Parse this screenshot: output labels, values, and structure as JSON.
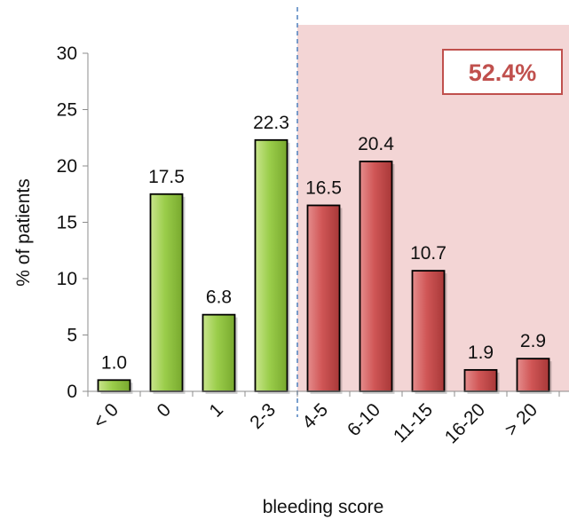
{
  "chart_data": {
    "type": "bar",
    "categories": [
      "< 0",
      "0",
      "1",
      "2-3",
      "4-5",
      "6-10",
      "11-15",
      "16-20",
      "> 20"
    ],
    "values": [
      1.0,
      17.5,
      6.8,
      22.3,
      16.5,
      20.4,
      10.7,
      1.9,
      2.9
    ],
    "value_labels": [
      "1.0",
      "17.5",
      "6.8",
      "22.3",
      "16.5",
      "20.4",
      "10.7",
      "1.9",
      "2.9"
    ],
    "bar_colors": [
      "#9acd4a",
      "#9acd4a",
      "#9acd4a",
      "#9acd4a",
      "#d05656",
      "#d05656",
      "#d05656",
      "#d05656",
      "#d05656"
    ],
    "xlabel": "bleeding score",
    "ylabel": "% of patients",
    "ylim": [
      0,
      30
    ],
    "yticks": [
      0,
      5,
      10,
      15,
      20,
      25,
      30
    ],
    "grid": false,
    "threshold_after_category": "2-3",
    "shaded_region": {
      "from_category": "4-5",
      "to_category": "> 20",
      "color": "#f3d5d5"
    },
    "annotation": {
      "text": "52.4%",
      "color": "#c0504d",
      "placement": "top-right"
    },
    "colors": {
      "green_bars": "#9acd4a",
      "red_bars": "#d05656",
      "divider": "#4f81bd"
    }
  }
}
